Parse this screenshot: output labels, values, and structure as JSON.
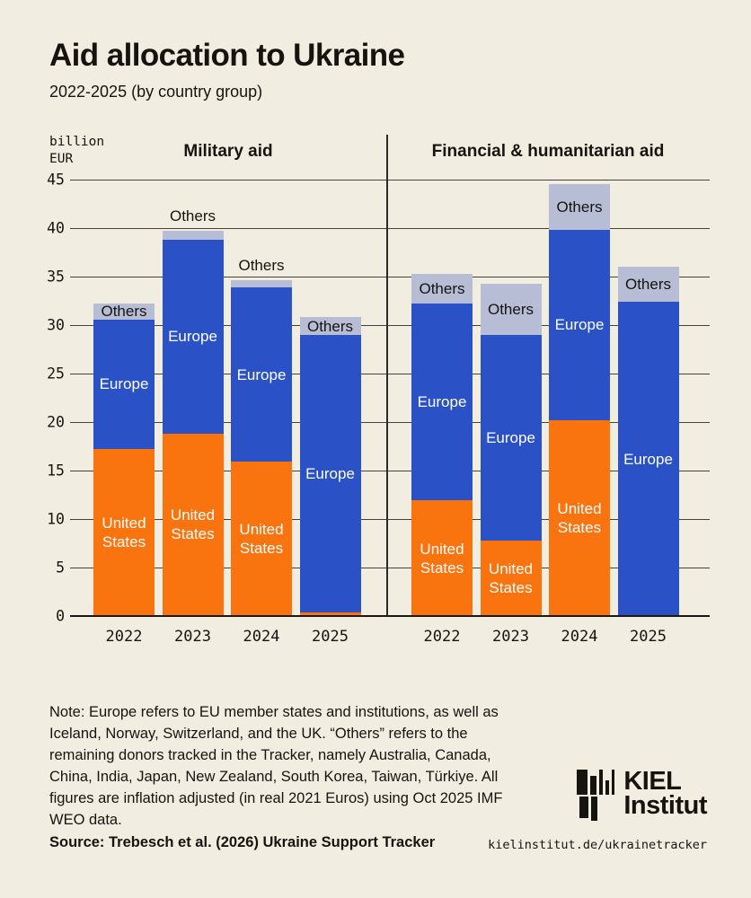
{
  "page": {
    "title": "Aid allocation to Ukraine",
    "subtitle": "2022-2025 (by country group)"
  },
  "chart_data": {
    "type": "bar",
    "stacked": true,
    "title": "Aid allocation to Ukraine 2022-2025 (by country group)",
    "ylabel": "billion\nEUR",
    "ylim": [
      0,
      45
    ],
    "yticks": [
      0,
      5,
      10,
      15,
      20,
      25,
      30,
      35,
      40,
      45
    ],
    "grid": true,
    "categories": [
      "2022",
      "2023",
      "2024",
      "2025"
    ],
    "panels": [
      {
        "title": "Military aid",
        "series": [
          {
            "name": "United States",
            "values": [
              17.2,
              18.8,
              15.9,
              0.4
            ]
          },
          {
            "name": "Europe",
            "values": [
              13.4,
              20.0,
              18.0,
              28.6
            ]
          },
          {
            "name": "Others",
            "values": [
              1.6,
              0.9,
              0.7,
              1.8
            ]
          }
        ]
      },
      {
        "title": "Financial & humanitarian aid",
        "series": [
          {
            "name": "United States",
            "values": [
              11.9,
              7.8,
              20.2,
              0
            ]
          },
          {
            "name": "Europe",
            "values": [
              20.3,
              21.2,
              19.6,
              32.4
            ]
          },
          {
            "name": "Others",
            "values": [
              3.1,
              5.3,
              4.7,
              3.6
            ]
          }
        ]
      }
    ],
    "colors": {
      "United States": "#F9740F",
      "Europe": "#2A51C5",
      "Others": "#B7BDD4",
      "background": "#F2EDE1",
      "text": "#16140F"
    },
    "legend_position": "on-bars"
  },
  "footer": {
    "note_lines": [
      "Note: Europe refers to EU member states and institutions, as well as",
      "Iceland, Norway, Switzerland, and the UK. “Others” refers to the",
      "remaining donors tracked in the Tracker, namely Australia, Canada,",
      "China, India, Japan, New Zealand, South Korea, Taiwan, Türkiye. All",
      "figures are inflation adjusted (in real 2021 Euros) using Oct 2025 IMF",
      "WEO data."
    ],
    "source": "Source: Trebesch et al. (2026) Ukraine Support Tracker",
    "url": "kielinstitut.de/ukrainetracker"
  },
  "logo": {
    "line1": "KIEL",
    "line2": "Institut"
  }
}
